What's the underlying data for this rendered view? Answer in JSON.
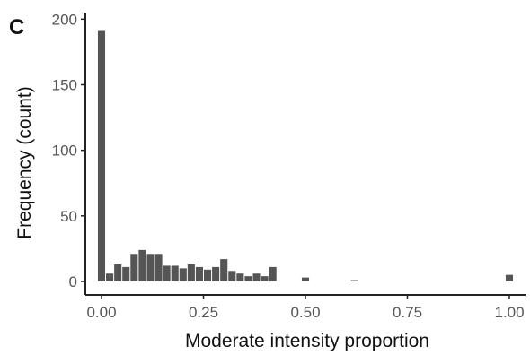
{
  "chart_data": {
    "type": "bar",
    "panel_label": "C",
    "title": "",
    "xlabel": "Moderate intensity proportion",
    "ylabel": "Frequency (count)",
    "xlim": [
      -0.03,
      1.04
    ],
    "ylim": [
      0,
      205
    ],
    "x_ticks": [
      0.0,
      0.25,
      0.5,
      0.75,
      1.0
    ],
    "x_tick_labels": [
      "0.00",
      "0.25",
      "0.50",
      "0.75",
      "1.00"
    ],
    "y_ticks": [
      0,
      50,
      100,
      150,
      200
    ],
    "y_tick_labels": [
      "0",
      "50",
      "100",
      "150",
      "200"
    ],
    "bin_width": 0.02,
    "grid": false,
    "bar_color": "#555555",
    "x": [
      0.0,
      0.02,
      0.04,
      0.06,
      0.08,
      0.1,
      0.12,
      0.14,
      0.16,
      0.18,
      0.2,
      0.22,
      0.24,
      0.26,
      0.28,
      0.3,
      0.32,
      0.34,
      0.36,
      0.38,
      0.4,
      0.42,
      0.44,
      0.46,
      0.48,
      0.5,
      0.52,
      0.54,
      0.56,
      0.58,
      0.6,
      0.62,
      0.64,
      0.66,
      0.68,
      0.7,
      0.72,
      0.74,
      0.76,
      0.78,
      0.8,
      0.82,
      0.84,
      0.86,
      0.88,
      0.9,
      0.92,
      0.94,
      0.96,
      0.98,
      1.0
    ],
    "values": [
      191,
      6,
      13,
      11,
      21,
      24,
      21,
      21,
      12,
      12,
      10,
      13,
      11,
      9,
      11,
      17,
      8,
      6,
      4,
      6,
      4,
      11,
      0,
      0,
      0,
      3,
      0,
      0,
      0,
      0,
      0,
      1,
      0,
      0,
      0,
      0,
      0,
      0,
      0,
      0,
      0,
      0,
      0,
      0,
      0,
      0,
      0,
      0,
      0,
      0,
      5
    ]
  }
}
